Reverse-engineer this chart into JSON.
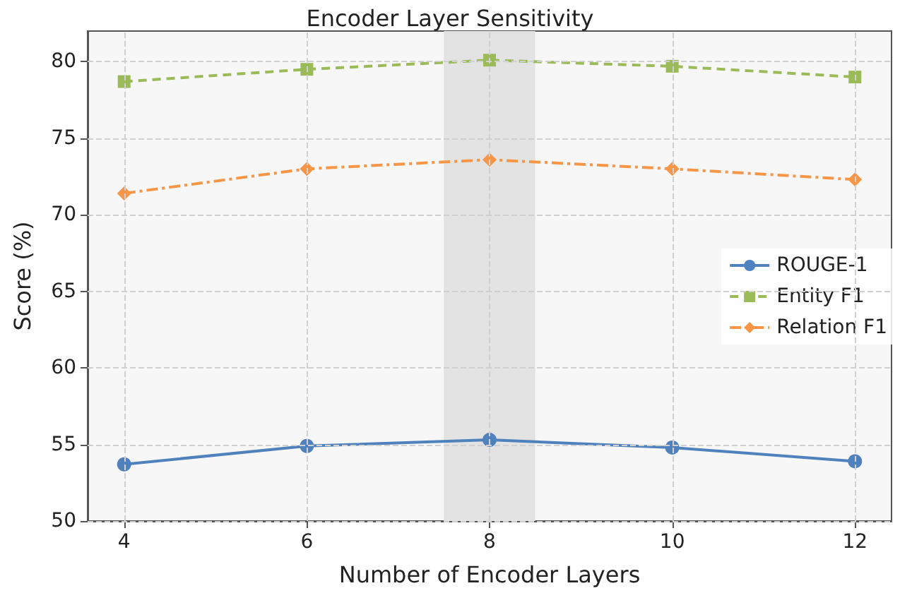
{
  "chart_data": {
    "type": "line",
    "title": "Encoder Layer Sensitivity",
    "xlabel": "Number of Encoder Layers",
    "ylabel": "Score (%)",
    "x": [
      4,
      6,
      8,
      10,
      12
    ],
    "series": [
      {
        "name": "ROUGE-1",
        "color": "#4f81bd",
        "marker": "circle",
        "line_style": "solid",
        "values": [
          53.7,
          54.9,
          55.3,
          54.8,
          53.9
        ]
      },
      {
        "name": "Entity F1",
        "color": "#9bbb59",
        "marker": "square",
        "line_style": "dashed",
        "values": [
          78.7,
          79.5,
          80.1,
          79.7,
          79.0
        ]
      },
      {
        "name": "Relation F1",
        "color": "#f79646",
        "marker": "diamond",
        "line_style": "dashdot",
        "values": [
          71.4,
          73.0,
          73.6,
          73.0,
          72.3
        ]
      }
    ],
    "xlim": [
      3.6,
      12.4
    ],
    "xticks": [
      4,
      6,
      8,
      10,
      12
    ],
    "ylim": [
      50,
      82
    ],
    "yticks": [
      50,
      55,
      60,
      65,
      70,
      75,
      80
    ],
    "bands": [
      {
        "axis": "x",
        "from": 7.5,
        "to": 8.5,
        "color": "#e3e3e3"
      }
    ],
    "grid": true,
    "legend": "right"
  }
}
